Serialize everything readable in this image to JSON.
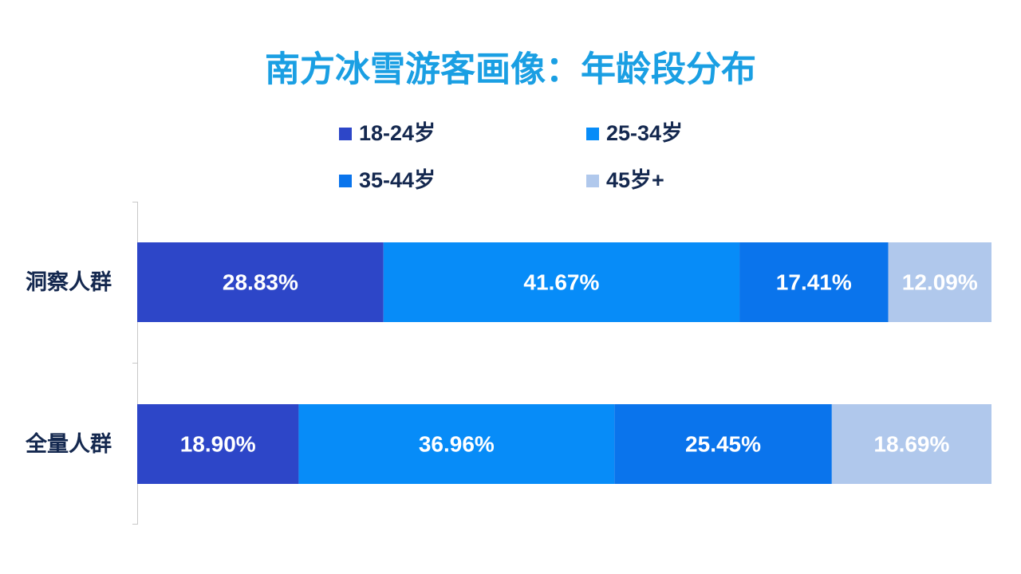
{
  "chart_data": {
    "type": "stacked-bar-horizontal",
    "title": "南方冰雪游客画像：年龄段分布",
    "categories": [
      "洞察人群",
      "全量人群"
    ],
    "xlim": [
      0,
      100
    ],
    "series": [
      {
        "name": "18-24岁",
        "color": "#2d46c8",
        "values": [
          28.83,
          18.9
        ],
        "value_labels": [
          "28.83%",
          "18.90%"
        ]
      },
      {
        "name": "25-34岁",
        "color": "#078cf8",
        "values": [
          41.67,
          36.96
        ],
        "value_labels": [
          "41.67%",
          "36.96%"
        ]
      },
      {
        "name": "35-44岁",
        "color": "#0a74ec",
        "values": [
          17.41,
          25.45
        ],
        "value_labels": [
          "17.41%",
          "25.45%"
        ]
      },
      {
        "name": "45岁+",
        "color": "#b0c8ec",
        "values": [
          12.09,
          18.69
        ],
        "value_labels": [
          "12.09%",
          "18.69%"
        ]
      }
    ]
  }
}
